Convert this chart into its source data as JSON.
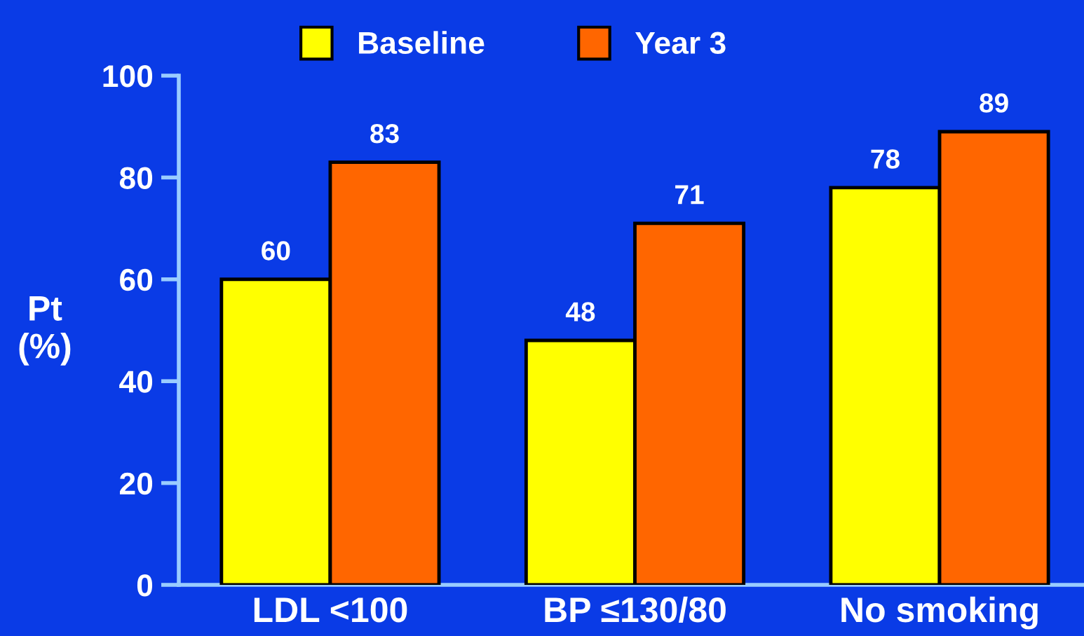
{
  "chart_data": {
    "type": "bar",
    "ylabel": "Pt\n(%)",
    "categories": [
      "LDL <100",
      "BP ≤130/80",
      "No smoking"
    ],
    "series": [
      {
        "name": "Baseline",
        "color": "#ffff00",
        "values": [
          60,
          48,
          78
        ]
      },
      {
        "name": "Year 3",
        "color": "#ff6600",
        "values": [
          83,
          71,
          89
        ]
      }
    ],
    "ylim": [
      0,
      100
    ],
    "yticks": [
      0,
      20,
      40,
      60,
      80,
      100
    ],
    "grid": false,
    "legend": "top",
    "data_labels": true
  }
}
